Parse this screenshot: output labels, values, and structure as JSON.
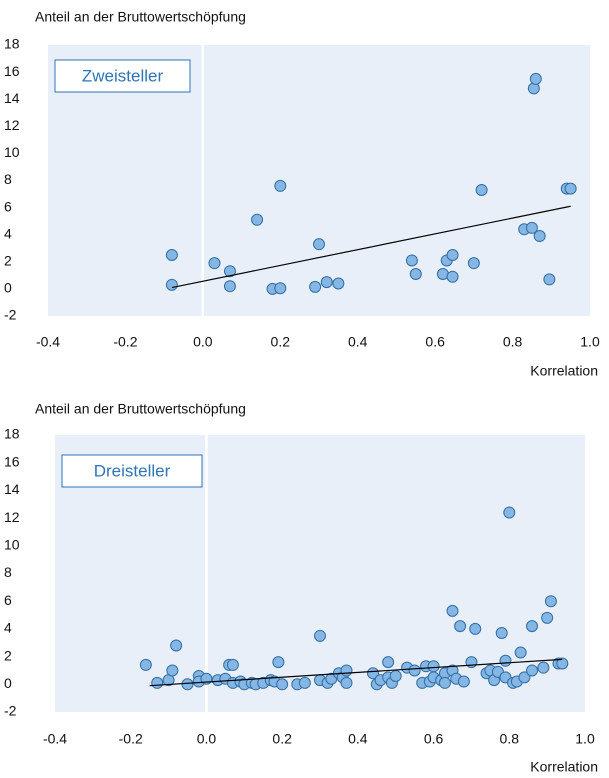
{
  "chart_data": [
    {
      "type": "scatter",
      "ylabel": "Anteil an der Bruttowertschöpfung",
      "xlabel": "Korrelation",
      "annotation": "Zweisteller",
      "color": "#86b6e3",
      "edge_color": "#2e6ea6",
      "x": [
        -0.08,
        -0.08,
        0.03,
        0.07,
        0.07,
        0.14,
        0.18,
        0.2,
        0.2,
        0.29,
        0.3,
        0.32,
        0.35,
        0.54,
        0.55,
        0.62,
        0.63,
        0.645,
        0.645,
        0.7,
        0.72,
        0.83,
        0.85,
        0.855,
        0.86,
        0.87,
        0.895,
        0.94,
        0.95
      ],
      "values": [
        2.5,
        0.3,
        1.9,
        1.3,
        0.2,
        5.1,
        0.0,
        0.05,
        7.6,
        0.15,
        3.3,
        0.5,
        0.4,
        2.1,
        1.1,
        1.1,
        2.1,
        2.5,
        0.9,
        1.9,
        7.3,
        4.4,
        4.5,
        14.8,
        15.5,
        3.9,
        0.7,
        7.4,
        7.4
      ],
      "trendline": {
        "x": [
          -0.08,
          0.95
        ],
        "y": [
          0.1,
          6.1
        ]
      },
      "xlim": [
        -0.4,
        1.0
      ],
      "xticks": [
        -0.4,
        -0.2,
        {
          "value": 0,
          "label": "0.0"
        },
        0.2,
        0.4,
        0.6,
        0.8,
        {
          "value": 1,
          "label": "1.0"
        }
      ],
      "ylim": [
        -2,
        18
      ],
      "yticks": [
        -2,
        0,
        2,
        4,
        6,
        8,
        10,
        12,
        14,
        16,
        18
      ],
      "zero_line": true
    },
    {
      "type": "scatter",
      "ylabel": "Anteil an der Bruttowertschöpfung",
      "xlabel": "Korrelation",
      "annotation": "Dreisteller",
      "color": "#86b6e3",
      "edge_color": "#2e6ea6",
      "x": [
        -0.16,
        -0.13,
        -0.1,
        -0.09,
        -0.08,
        -0.05,
        -0.02,
        -0.02,
        0.0,
        0.03,
        0.05,
        0.06,
        0.07,
        0.07,
        0.09,
        0.1,
        0.12,
        0.13,
        0.15,
        0.17,
        0.18,
        0.19,
        0.2,
        0.24,
        0.26,
        0.3,
        0.3,
        0.32,
        0.33,
        0.35,
        0.36,
        0.37,
        0.37,
        0.44,
        0.45,
        0.46,
        0.48,
        0.48,
        0.49,
        0.5,
        0.53,
        0.55,
        0.57,
        0.58,
        0.59,
        0.6,
        0.6,
        0.62,
        0.63,
        0.63,
        0.65,
        0.65,
        0.66,
        0.67,
        0.68,
        0.7,
        0.71,
        0.74,
        0.75,
        0.76,
        0.77,
        0.78,
        0.79,
        0.79,
        0.8,
        0.81,
        0.82,
        0.83,
        0.84,
        0.86,
        0.86,
        0.89,
        0.9,
        0.91,
        0.93,
        0.94
      ],
      "values": [
        1.4,
        0.1,
        0.3,
        1.0,
        2.8,
        0.0,
        0.6,
        0.2,
        0.4,
        0.3,
        0.4,
        1.4,
        1.4,
        0.1,
        0.2,
        0.0,
        0.1,
        0.0,
        0.1,
        0.3,
        0.2,
        1.6,
        0.0,
        0.0,
        0.1,
        3.5,
        0.3,
        0.1,
        0.4,
        0.8,
        0.5,
        0.1,
        1.0,
        0.8,
        0.0,
        0.3,
        1.6,
        0.5,
        0.1,
        0.6,
        1.2,
        1.0,
        0.1,
        1.3,
        0.2,
        0.5,
        1.3,
        0.3,
        0.8,
        0.1,
        1.0,
        5.3,
        0.4,
        4.2,
        0.2,
        1.6,
        4.0,
        0.8,
        1.0,
        0.3,
        0.9,
        3.7,
        1.7,
        0.5,
        12.4,
        0.1,
        0.2,
        2.3,
        0.5,
        4.2,
        1.0,
        1.2,
        4.8,
        6.0,
        1.5,
        1.5
      ],
      "trendline": {
        "x": [
          -0.15,
          0.94
        ],
        "y": [
          -0.1,
          1.8
        ]
      },
      "xlim": [
        -0.4,
        1.0
      ],
      "xticks": [
        -0.4,
        -0.2,
        {
          "value": 0,
          "label": "0.0"
        },
        0.2,
        0.4,
        0.6,
        0.8,
        {
          "value": 1,
          "label": "1.0"
        }
      ],
      "ylim": [
        -2,
        18
      ],
      "yticks": [
        -2,
        0,
        2,
        4,
        6,
        8,
        10,
        12,
        14,
        16,
        18
      ],
      "zero_line": true
    }
  ]
}
